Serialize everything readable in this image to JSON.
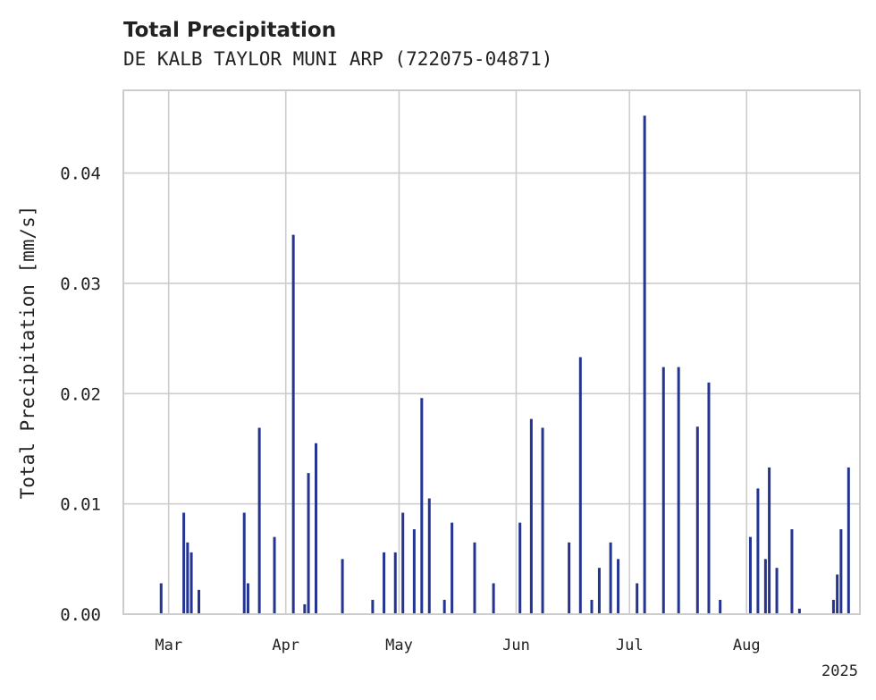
{
  "chart_data": {
    "type": "bar",
    "title": "Total Precipitation",
    "subtitle": "DE KALB TAYLOR MUNI ARP (722075-04871)",
    "ylabel": "Total Precipitation [mm/s]",
    "xlabel": "",
    "ylim": [
      0,
      0.0475
    ],
    "xlim": [
      "2025-02-17",
      "2025-08-31"
    ],
    "yticks": [
      0,
      0.01,
      0.02,
      0.03,
      0.04
    ],
    "ytick_labels": [
      "0.00",
      "0.01",
      "0.02",
      "0.03",
      "0.04"
    ],
    "xticks": [
      "2025-03-01",
      "2025-04-01",
      "2025-05-01",
      "2025-06-01",
      "2025-07-01",
      "2025-08-01"
    ],
    "xtick_labels": [
      "Mar",
      "Apr",
      "May",
      "Jun",
      "Jul",
      "Aug"
    ],
    "x_offset_label": "2025",
    "grid": true,
    "bar_color": "#233492",
    "x": [
      "2025-02-27",
      "2025-03-05",
      "2025-03-06",
      "2025-03-07",
      "2025-03-09",
      "2025-03-21",
      "2025-03-22",
      "2025-03-25",
      "2025-03-29",
      "2025-04-03",
      "2025-04-06",
      "2025-04-07",
      "2025-04-09",
      "2025-04-16",
      "2025-04-24",
      "2025-04-27",
      "2025-04-30",
      "2025-05-02",
      "2025-05-05",
      "2025-05-07",
      "2025-05-09",
      "2025-05-13",
      "2025-05-15",
      "2025-05-21",
      "2025-05-26",
      "2025-06-02",
      "2025-06-05",
      "2025-06-08",
      "2025-06-15",
      "2025-06-18",
      "2025-06-21",
      "2025-06-23",
      "2025-06-26",
      "2025-06-28",
      "2025-07-03",
      "2025-07-05",
      "2025-07-10",
      "2025-07-14",
      "2025-07-19",
      "2025-07-22",
      "2025-07-25",
      "2025-08-02",
      "2025-08-04",
      "2025-08-06",
      "2025-08-07",
      "2025-08-09",
      "2025-08-13",
      "2025-08-15",
      "2025-08-24",
      "2025-08-25",
      "2025-08-26",
      "2025-08-28"
    ],
    "values": [
      0.0028,
      0.0092,
      0.0065,
      0.0056,
      0.0022,
      0.0092,
      0.0028,
      0.0169,
      0.007,
      0.0344,
      0.0009,
      0.0128,
      0.0155,
      0.005,
      0.0013,
      0.0056,
      0.0056,
      0.0092,
      0.0077,
      0.0196,
      0.0105,
      0.0013,
      0.0083,
      0.0065,
      0.0028,
      0.0083,
      0.0177,
      0.0169,
      0.0065,
      0.0233,
      0.0013,
      0.0042,
      0.0065,
      0.005,
      0.0028,
      0.0452,
      0.0224,
      0.0224,
      0.017,
      0.021,
      0.0013,
      0.007,
      0.0114,
      0.005,
      0.0133,
      0.0042,
      0.0077,
      0.0005,
      0.0013,
      0.0036,
      0.0077,
      0.0133
    ]
  }
}
